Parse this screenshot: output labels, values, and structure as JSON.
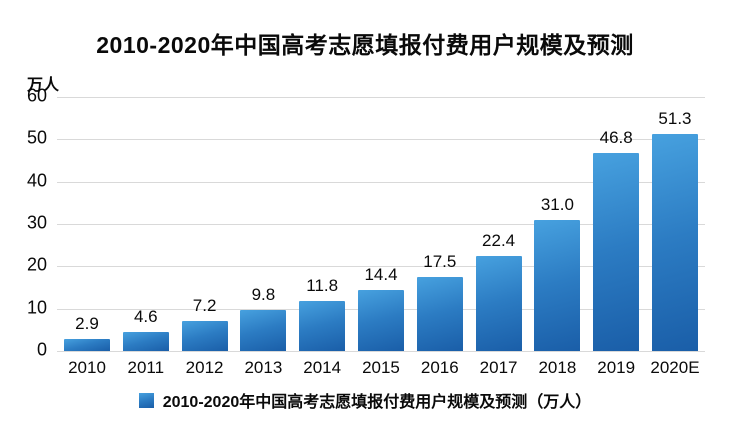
{
  "chart_data": {
    "type": "bar",
    "title": "2010-2020年中国高考志愿填报付费用户规模及预测",
    "unit": "万人",
    "categories": [
      "2010",
      "2011",
      "2012",
      "2013",
      "2014",
      "2015",
      "2016",
      "2017",
      "2018",
      "2019",
      "2020E"
    ],
    "values": [
      2.9,
      4.6,
      7.2,
      9.8,
      11.8,
      14.4,
      17.5,
      22.4,
      31.0,
      46.8,
      51.3
    ],
    "value_labels": [
      "2.9",
      "4.6",
      "7.2",
      "9.8",
      "11.8",
      "14.4",
      "17.5",
      "22.4",
      "31.0",
      "46.8",
      "51.3"
    ],
    "legend": "2010-2020年中国高考志愿填报付费用户规模及预测（万人）",
    "xlabel": "",
    "ylabel": "万人",
    "ylim": [
      0,
      60
    ],
    "yticks": [
      0,
      10,
      20,
      30,
      40,
      50,
      60
    ],
    "grid": "on",
    "legend_position": "bottom-center",
    "colors": {
      "bar_gradient_top": "#47a1df",
      "bar_gradient_mid": "#2c7cc3",
      "bar_gradient_bottom": "#1a5ea8",
      "gridline": "#d9d9d9",
      "text": "#0a0a0a",
      "background": "#ffffff"
    }
  }
}
